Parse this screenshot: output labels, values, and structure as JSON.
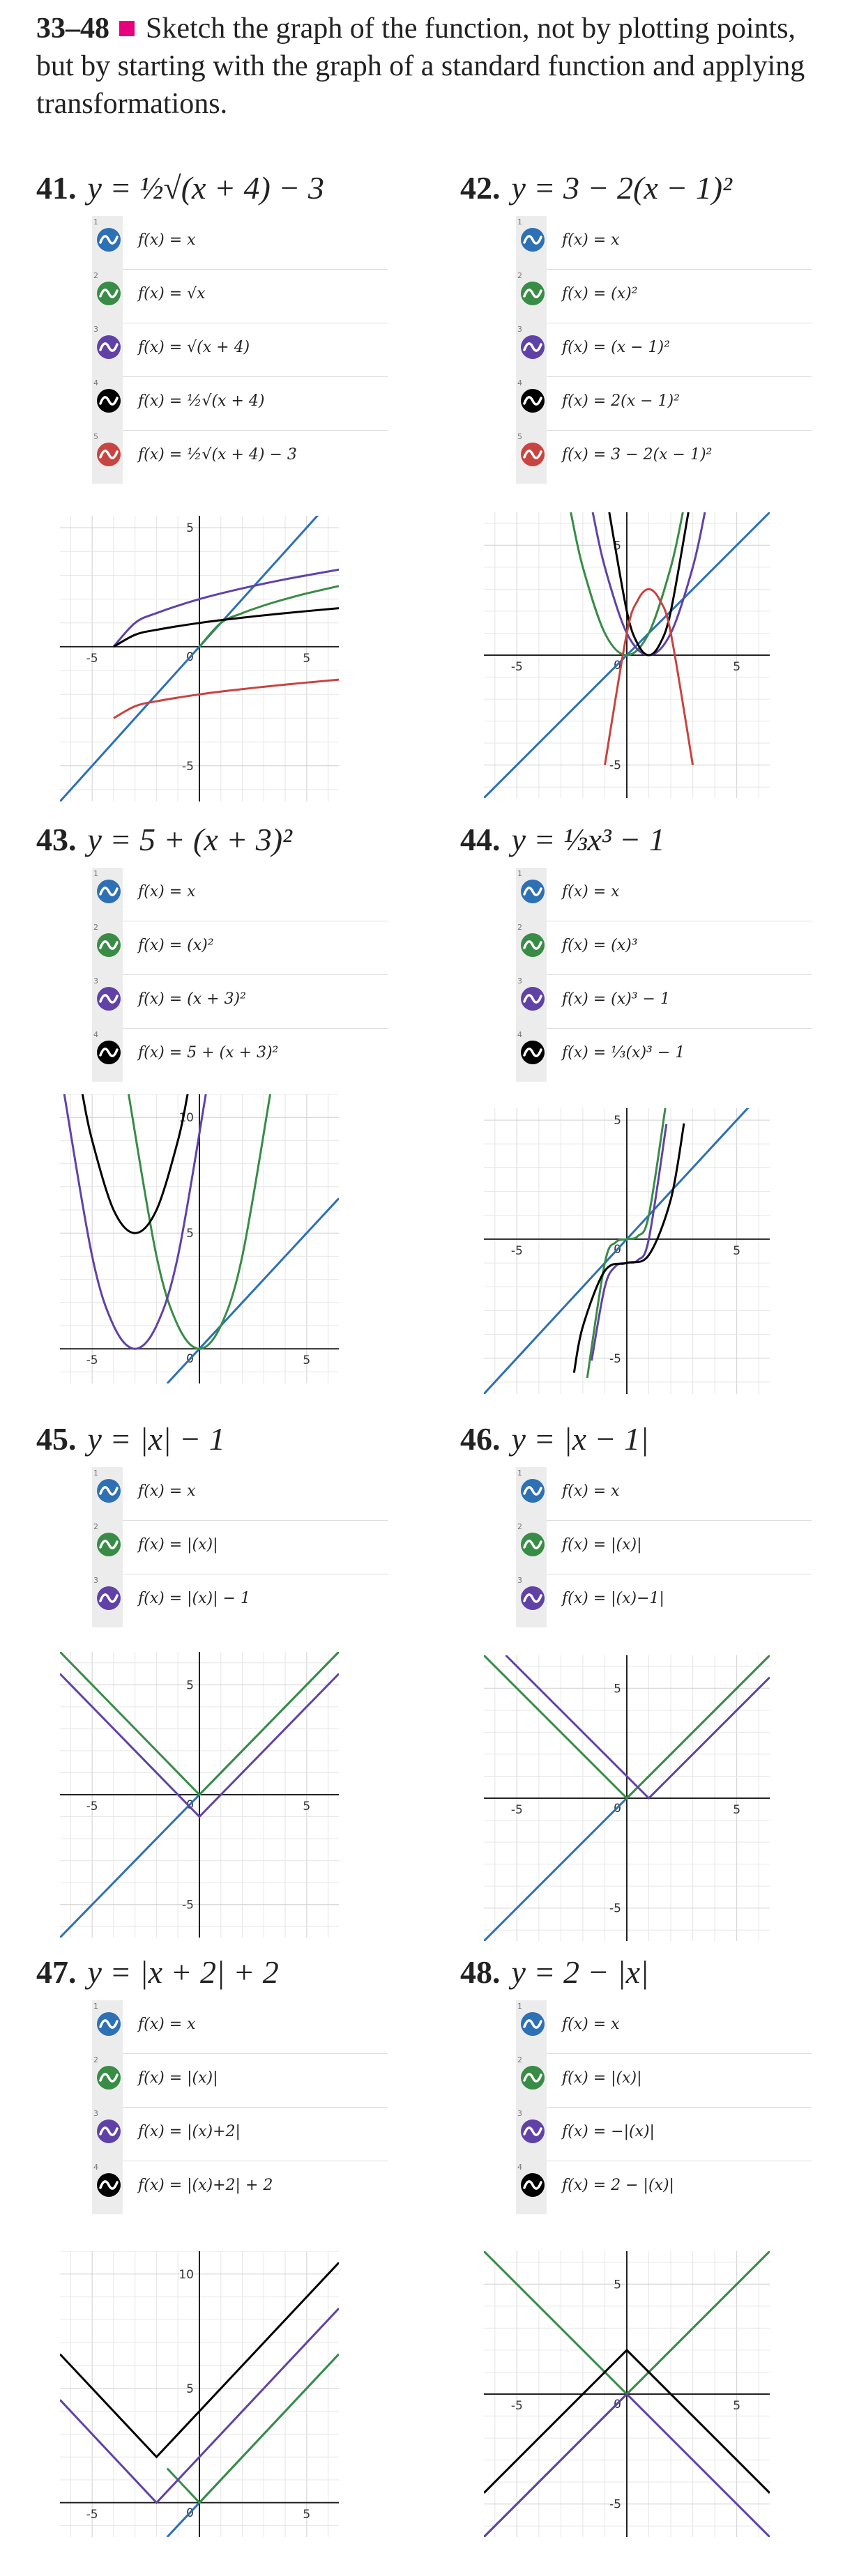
{
  "header": {
    "range": "33–48",
    "text": "Sketch the graph of the function, not by plotting points, but by starting with the graph of a standard function and applying transformations."
  },
  "colors": {
    "blue": "#2d70b3",
    "green": "#388c46",
    "purple": "#6042a6",
    "black": "#000000",
    "red": "#c74440",
    "accent": "#e6007e"
  },
  "problems": [
    {
      "number": "41.",
      "title": "y = ½√(x + 4) − 3",
      "functions": [
        {
          "index": "1",
          "color": "blue",
          "label": "f(x) = x"
        },
        {
          "index": "2",
          "color": "green",
          "label": "f(x) = √x"
        },
        {
          "index": "3",
          "color": "purple",
          "label": "f(x) = √(x + 4)"
        },
        {
          "index": "4",
          "color": "black",
          "label": "f(x) = ½√(x + 4)"
        },
        {
          "index": "5",
          "color": "red",
          "label": "f(x) = ½√(x + 4) − 3"
        }
      ]
    },
    {
      "number": "42.",
      "title": "y = 3 − 2(x − 1)²",
      "functions": [
        {
          "index": "1",
          "color": "blue",
          "label": "f(x) = x"
        },
        {
          "index": "2",
          "color": "green",
          "label": "f(x) = (x)²"
        },
        {
          "index": "3",
          "color": "purple",
          "label": "f(x) = (x − 1)²"
        },
        {
          "index": "4",
          "color": "black",
          "label": "f(x) = 2(x − 1)²"
        },
        {
          "index": "5",
          "color": "red",
          "label": "f(x) = 3 − 2(x − 1)²"
        }
      ]
    },
    {
      "number": "43.",
      "title": "y = 5 + (x + 3)²",
      "functions": [
        {
          "index": "1",
          "color": "blue",
          "label": "f(x) = x"
        },
        {
          "index": "2",
          "color": "green",
          "label": "f(x) = (x)²"
        },
        {
          "index": "3",
          "color": "purple",
          "label": "f(x) = (x + 3)²"
        },
        {
          "index": "4",
          "color": "black",
          "label": "f(x) = 5 + (x + 3)²"
        }
      ]
    },
    {
      "number": "44.",
      "title": "y = ⅓x³ − 1",
      "functions": [
        {
          "index": "1",
          "color": "blue",
          "label": "f(x) = x"
        },
        {
          "index": "2",
          "color": "green",
          "label": "f(x) = (x)³"
        },
        {
          "index": "3",
          "color": "purple",
          "label": "f(x) = (x)³ − 1"
        },
        {
          "index": "4",
          "color": "black",
          "label": "f(x) = ⅓(x)³ − 1"
        }
      ]
    },
    {
      "number": "45.",
      "title": "y = |x| − 1",
      "functions": [
        {
          "index": "1",
          "color": "blue",
          "label": "f(x) = x"
        },
        {
          "index": "2",
          "color": "green",
          "label": "f(x) = |(x)|"
        },
        {
          "index": "3",
          "color": "purple",
          "label": "f(x) = |(x)| − 1"
        }
      ]
    },
    {
      "number": "46.",
      "title": "y = |x − 1|",
      "functions": [
        {
          "index": "1",
          "color": "blue",
          "label": "f(x) = x"
        },
        {
          "index": "2",
          "color": "green",
          "label": "f(x) = |(x)|"
        },
        {
          "index": "3",
          "color": "purple",
          "label": "f(x) = |(x)−1|"
        }
      ]
    },
    {
      "number": "47.",
      "title": "y = |x + 2| + 2",
      "functions": [
        {
          "index": "1",
          "color": "blue",
          "label": "f(x) = x"
        },
        {
          "index": "2",
          "color": "green",
          "label": "f(x) = |(x)|"
        },
        {
          "index": "3",
          "color": "purple",
          "label": "f(x) = |(x)+2|"
        },
        {
          "index": "4",
          "color": "black",
          "label": "f(x) = |(x)+2| + 2"
        }
      ]
    },
    {
      "number": "48.",
      "title": "y = 2 − |x|",
      "functions": [
        {
          "index": "1",
          "color": "blue",
          "label": "f(x) = x"
        },
        {
          "index": "2",
          "color": "green",
          "label": "f(x) = |(x)|"
        },
        {
          "index": "3",
          "color": "purple",
          "label": "f(x) = −|(x)|"
        },
        {
          "index": "4",
          "color": "black",
          "label": "f(x) = 2 − |(x)|"
        }
      ]
    }
  ],
  "chart_data": [
    {
      "type": "line",
      "problem": "41",
      "xlim": [
        -6.5,
        6.5
      ],
      "ylim": [
        -6.5,
        5.5
      ],
      "grid": true,
      "xticks": [
        "-5",
        "5"
      ],
      "yticks": [
        "-5",
        "5"
      ],
      "series": [
        {
          "color": "blue",
          "x": [
            -6.5,
            0,
            6.5
          ],
          "y": [
            -6.5,
            0,
            6.5
          ]
        },
        {
          "color": "green",
          "x": [
            0,
            1,
            2,
            3,
            4,
            5,
            6.5
          ],
          "y": [
            0,
            1,
            1.41,
            1.73,
            2,
            2.24,
            2.55
          ]
        },
        {
          "color": "purple",
          "x": [
            -4,
            -3,
            -2,
            0,
            2,
            4,
            6.5
          ],
          "y": [
            0,
            1,
            1.41,
            2,
            2.45,
            2.83,
            3.24
          ]
        },
        {
          "color": "black",
          "x": [
            -4,
            -3,
            -2,
            0,
            2,
            4,
            6.5
          ],
          "y": [
            0,
            0.5,
            0.71,
            1,
            1.22,
            1.41,
            1.62
          ]
        },
        {
          "color": "red",
          "x": [
            -4,
            -3,
            -2,
            0,
            2,
            4,
            6.5
          ],
          "y": [
            -3,
            -2.5,
            -2.29,
            -2,
            -1.78,
            -1.59,
            -1.38
          ]
        }
      ]
    },
    {
      "type": "line",
      "problem": "42",
      "xlim": [
        -6.5,
        6.5
      ],
      "ylim": [
        -6.5,
        6.5
      ],
      "grid": true,
      "xticks": [
        "-5",
        "5"
      ],
      "yticks": [
        "-5",
        "5"
      ],
      "series": [
        {
          "color": "blue",
          "x": [
            -6.5,
            0,
            6.5
          ],
          "y": [
            -6.5,
            0,
            6.5
          ]
        },
        {
          "color": "green",
          "x": [
            -2.55,
            -2,
            -1,
            0,
            1,
            2,
            2.55
          ],
          "y": [
            6.5,
            4,
            1,
            0,
            1,
            4,
            6.5
          ]
        },
        {
          "color": "purple",
          "x": [
            -1.55,
            -1,
            0,
            1,
            2,
            3,
            3.55
          ],
          "y": [
            6.5,
            4,
            1,
            0,
            1,
            4,
            6.5
          ]
        },
        {
          "color": "black",
          "x": [
            -0.8,
            0,
            0.5,
            1,
            1.5,
            2,
            2.8
          ],
          "y": [
            6.5,
            2,
            0.5,
            0,
            0.5,
            2,
            6.5
          ]
        },
        {
          "color": "red",
          "x": [
            -1,
            0,
            0.5,
            1,
            1.5,
            2,
            3
          ],
          "y": [
            -5,
            1,
            2.5,
            3,
            2.5,
            1,
            -5
          ]
        }
      ]
    },
    {
      "type": "line",
      "problem": "43",
      "xlim": [
        -6.5,
        6.5
      ],
      "ylim": [
        -1.5,
        11
      ],
      "grid": true,
      "xticks": [
        "-5",
        "5"
      ],
      "yticks": [
        "5",
        "10"
      ],
      "series": [
        {
          "color": "blue",
          "x": [
            -1.5,
            0,
            6.5
          ],
          "y": [
            -1.5,
            0,
            6.5
          ]
        },
        {
          "color": "green",
          "x": [
            -3.3,
            -2,
            -1,
            0,
            1,
            2,
            3.3
          ],
          "y": [
            11,
            4,
            1,
            0,
            1,
            4,
            11
          ]
        },
        {
          "color": "purple",
          "x": [
            -6.3,
            -5,
            -4,
            -3,
            -2,
            -1,
            0.3
          ],
          "y": [
            11,
            4,
            1,
            0,
            1,
            4,
            11
          ]
        },
        {
          "color": "black",
          "x": [
            -5.45,
            -5,
            -4,
            -3,
            -2,
            -1,
            -0.55
          ],
          "y": [
            11,
            9,
            6,
            5,
            6,
            9,
            11
          ]
        }
      ]
    },
    {
      "type": "line",
      "problem": "44",
      "xlim": [
        -6.5,
        6.5
      ],
      "ylim": [
        -6.5,
        5.5
      ],
      "grid": true,
      "xticks": [
        "-5",
        "5"
      ],
      "yticks": [
        "-5",
        "5"
      ],
      "series": [
        {
          "color": "blue",
          "x": [
            -6.5,
            0,
            6.5
          ],
          "y": [
            -6.5,
            0,
            6.5
          ]
        },
        {
          "color": "green",
          "x": [
            -1.8,
            -1,
            -0.5,
            0,
            0.5,
            1,
            1.8
          ],
          "y": [
            -5.83,
            -1,
            -0.13,
            0,
            0.13,
            1,
            5.83
          ]
        },
        {
          "color": "purple",
          "x": [
            -1.6,
            -1,
            -0.5,
            0,
            0.5,
            1,
            1.8
          ],
          "y": [
            -5.1,
            -2,
            -1.13,
            -1,
            -0.88,
            0,
            4.83
          ]
        },
        {
          "color": "black",
          "x": [
            -2.4,
            -2,
            -1,
            0,
            1,
            2,
            2.6
          ],
          "y": [
            -5.61,
            -3.67,
            -1.33,
            -1,
            -0.67,
            1.67,
            4.86
          ]
        }
      ]
    },
    {
      "type": "line",
      "problem": "45",
      "xlim": [
        -6.5,
        6.5
      ],
      "ylim": [
        -6.5,
        6.5
      ],
      "grid": true,
      "xticks": [
        "-5",
        "5"
      ],
      "yticks": [
        "-5",
        "5"
      ],
      "series": [
        {
          "color": "blue",
          "x": [
            -6.5,
            0,
            6.5
          ],
          "y": [
            -6.5,
            0,
            6.5
          ]
        },
        {
          "color": "green",
          "x": [
            -6.5,
            0,
            6.5
          ],
          "y": [
            6.5,
            0,
            6.5
          ]
        },
        {
          "color": "purple",
          "x": [
            -6.5,
            0,
            6.5
          ],
          "y": [
            5.5,
            -1,
            5.5
          ]
        }
      ]
    },
    {
      "type": "line",
      "problem": "46",
      "xlim": [
        -6.5,
        6.5
      ],
      "ylim": [
        -6.5,
        6.5
      ],
      "grid": true,
      "xticks": [
        "-5",
        "5"
      ],
      "yticks": [
        "-5",
        "5"
      ],
      "series": [
        {
          "color": "blue",
          "x": [
            -6.5,
            0,
            6.5
          ],
          "y": [
            -6.5,
            0,
            6.5
          ]
        },
        {
          "color": "green",
          "x": [
            -6.5,
            0,
            6.5
          ],
          "y": [
            6.5,
            0,
            6.5
          ]
        },
        {
          "color": "purple",
          "x": [
            -5.5,
            1,
            6.5
          ],
          "y": [
            6.5,
            0,
            5.5
          ]
        }
      ]
    },
    {
      "type": "line",
      "problem": "47",
      "xlim": [
        -6.5,
        6.5
      ],
      "ylim": [
        -1.5,
        11
      ],
      "grid": true,
      "xticks": [
        "-5",
        "5"
      ],
      "yticks": [
        "5",
        "10"
      ],
      "series": [
        {
          "color": "blue",
          "x": [
            -1.5,
            0,
            6.5
          ],
          "y": [
            -1.5,
            0,
            6.5
          ]
        },
        {
          "color": "green",
          "x": [
            -1.5,
            0,
            6.5
          ],
          "y": [
            1.5,
            0,
            6.5
          ]
        },
        {
          "color": "purple",
          "x": [
            -6.5,
            -2,
            6.5
          ],
          "y": [
            4.5,
            0,
            8.5
          ]
        },
        {
          "color": "black",
          "x": [
            -6.5,
            -2,
            6.5
          ],
          "y": [
            6.5,
            2,
            10.5
          ]
        }
      ]
    },
    {
      "type": "line",
      "problem": "48",
      "xlim": [
        -6.5,
        6.5
      ],
      "ylim": [
        -6.5,
        6.5
      ],
      "grid": true,
      "xticks": [
        "-5",
        "5"
      ],
      "yticks": [
        "-5",
        "5"
      ],
      "series": [
        {
          "color": "blue",
          "x": [
            -6.5,
            0,
            6.5
          ],
          "y": [
            -6.5,
            0,
            6.5
          ]
        },
        {
          "color": "green",
          "x": [
            -6.5,
            0,
            6.5
          ],
          "y": [
            6.5,
            0,
            6.5
          ]
        },
        {
          "color": "purple",
          "x": [
            -6.5,
            0,
            6.5
          ],
          "y": [
            -6.5,
            0,
            -6.5
          ]
        },
        {
          "color": "black",
          "x": [
            -6.5,
            0,
            6.5
          ],
          "y": [
            -4.5,
            2,
            -4.5
          ]
        }
      ]
    }
  ]
}
